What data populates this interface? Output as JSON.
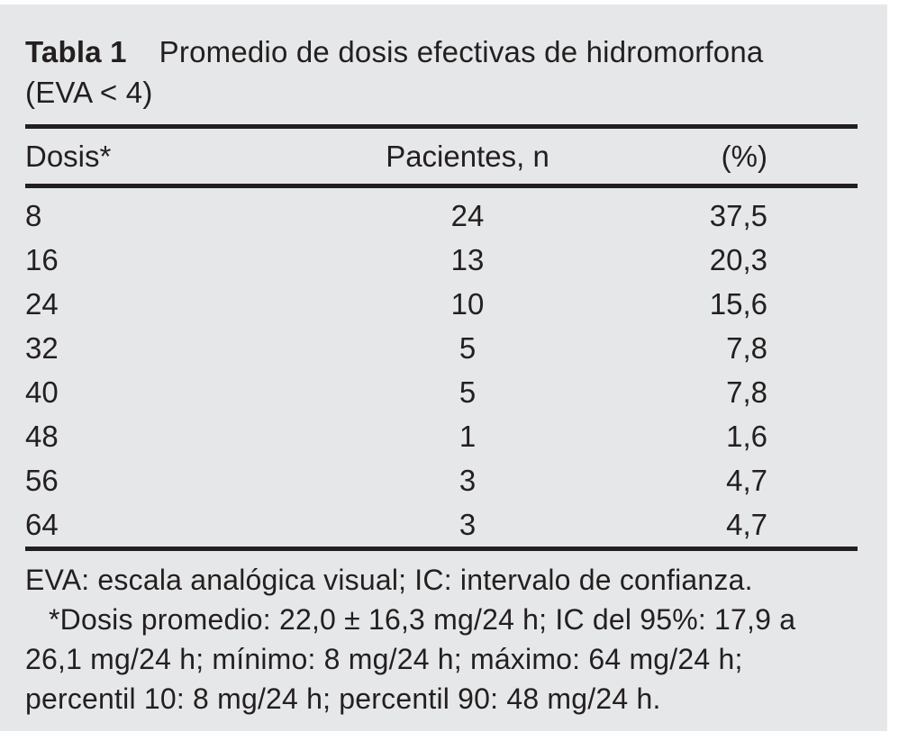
{
  "title": {
    "label": "Tabla 1",
    "text": "Promedio de dosis efectivas de hidromorfona",
    "text_line2": "(EVA < 4)"
  },
  "table": {
    "columns": [
      {
        "label": "Dosis*"
      },
      {
        "label": "Pacientes, n"
      },
      {
        "label": "(%)"
      }
    ],
    "rows": [
      {
        "dose": "8",
        "patients": "24",
        "pct": "37,5"
      },
      {
        "dose": "16",
        "patients": "13",
        "pct": "20,3"
      },
      {
        "dose": "24",
        "patients": "10",
        "pct": "15,6"
      },
      {
        "dose": "32",
        "patients": "5",
        "pct": "7,8"
      },
      {
        "dose": "40",
        "patients": "5",
        "pct": "7,8"
      },
      {
        "dose": "48",
        "patients": "1",
        "pct": "1,6"
      },
      {
        "dose": "56",
        "patients": "3",
        "pct": "4,7"
      },
      {
        "dose": "64",
        "patients": "3",
        "pct": "4,7"
      }
    ]
  },
  "footnotes": {
    "lines": [
      "EVA: escala analógica visual; IC: intervalo de confianza.",
      "*Dosis promedio: 22,0 ± 16,3 mg/24 h; IC del 95%: 17,9 a",
      "26,1 mg/24 h; mínimo: 8 mg/24 h; máximo: 64 mg/24 h;",
      "percentil 10: 8 mg/24 h; percentil 90: 48 mg/24 h."
    ]
  },
  "colors": {
    "page_bg": "#ffffff",
    "panel_bg": "#e6e7e8",
    "text": "#231f20",
    "rule": "#231f20"
  }
}
